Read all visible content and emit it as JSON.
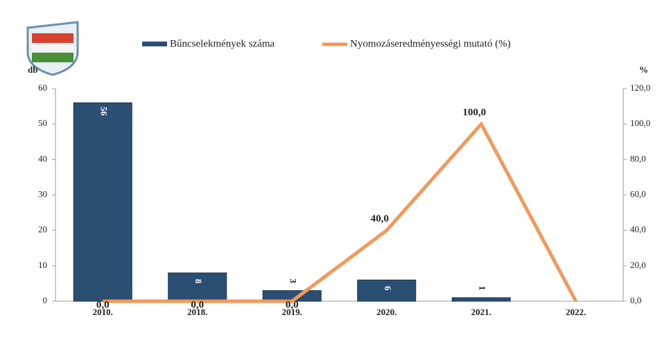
{
  "chart_data": {
    "type": "bar_line",
    "y_label": "db",
    "y2_label": "%",
    "categories": [
      "2010.",
      "2018.",
      "2019.",
      "2020.",
      "2021.",
      "2022."
    ],
    "series": [
      {
        "name": "Bűncselekmények száma",
        "type": "bar",
        "color": "#2b4f72",
        "values": [
          56,
          8,
          3,
          6,
          1,
          null
        ]
      },
      {
        "name": "Nyomozáseredményességi mutató (%)",
        "type": "line",
        "axis": "y2",
        "color": "#f2995a",
        "values": [
          0,
          0,
          0,
          40,
          100,
          0
        ],
        "value_labels": [
          "0,0",
          "0,0",
          "0,0",
          "40,0",
          "100,0",
          null
        ]
      }
    ],
    "ylim": [
      0,
      60
    ],
    "yticks": [
      0,
      10,
      20,
      30,
      40,
      50,
      60
    ],
    "y2lim": [
      0,
      120
    ],
    "y2ticks": [
      {
        "value": 0,
        "label": "0,0"
      },
      {
        "value": 20,
        "label": "20,0"
      },
      {
        "value": 40,
        "label": "40,0"
      },
      {
        "value": 60,
        "label": "60,0"
      },
      {
        "value": 80,
        "label": "80,0"
      },
      {
        "value": 100,
        "label": "100,0"
      },
      {
        "value": 120,
        "label": "120,0"
      }
    ]
  }
}
